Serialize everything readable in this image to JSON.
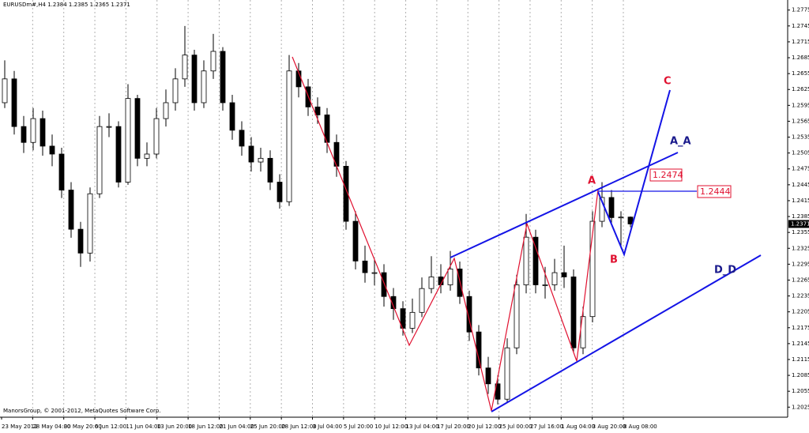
{
  "chart_data": {
    "type": "candlestick",
    "header": "EURUSDm#,H4  1.2384 1.2385 1.2365 1.2371",
    "copyright": "ManorsGroup, © 2001-2012, MetaQuotes Software Corp.",
    "x_labels": [
      "23 May 2012",
      "28 May 04:00",
      "30 May 20:00",
      "6 Jun 12:00",
      "11 Jun 04:00",
      "13 Jun 20:00",
      "18 Jun 12:00",
      "21 Jun 04:00",
      "25 Jun 20:00",
      "28 Jun 12:00",
      "3 Jul 04:00",
      "5 Jul 20:00",
      "10 Jul 12:00",
      "13 Jul 04:00",
      "17 Jul 20:00",
      "20 Jul 12:00",
      "25 Jul 00:00",
      "27 Jul 16:00",
      "1 Aug 04:00",
      "3 Aug 20:00",
      "8 Aug 08:00"
    ],
    "open": [
      1.26,
      1.2645,
      1.2555,
      1.2525,
      1.257,
      1.2518,
      1.2503,
      1.2435,
      1.2361,
      1.2316,
      1.2428,
      1.2555,
      1.2555,
      1.245,
      1.2608,
      1.2495,
      1.2503,
      1.257,
      1.26,
      1.2645,
      1.269,
      1.26,
      1.266,
      1.2697,
      1.26,
      1.2548,
      1.2518,
      1.2488,
      1.2495,
      1.245,
      1.2413,
      1.266,
      1.263,
      1.2592,
      1.2577,
      1.2525,
      1.248,
      1.2376,
      1.2301,
      1.2279,
      1.2279,
      1.2234,
      1.2211,
      1.2174,
      1.2204,
      1.2249,
      1.2271,
      1.2256,
      1.2286,
      1.2234,
      1.2167,
      1.2099,
      1.2069,
      1.204,
      1.2137,
      1.2256,
      1.2346,
      1.2256,
      1.2256,
      1.2279,
      1.2271,
      1.2137,
      1.2196,
      1.2376,
      1.2421,
      1.2383,
      1.2384
    ],
    "high": [
      1.268,
      1.266,
      1.2575,
      1.259,
      1.2585,
      1.254,
      1.2515,
      1.245,
      1.2375,
      1.244,
      1.2575,
      1.258,
      1.2565,
      1.2635,
      1.2615,
      1.2525,
      1.259,
      1.2625,
      1.2665,
      1.2745,
      1.27,
      1.268,
      1.273,
      1.2705,
      1.2615,
      1.2565,
      1.2535,
      1.2515,
      1.251,
      1.2465,
      1.269,
      1.2675,
      1.2645,
      1.261,
      1.259,
      1.254,
      1.249,
      1.2395,
      1.233,
      1.2305,
      1.2295,
      1.225,
      1.2225,
      1.223,
      1.227,
      1.231,
      1.2295,
      1.232,
      1.23,
      1.2245,
      1.218,
      1.212,
      1.2085,
      1.2155,
      1.2275,
      1.239,
      1.236,
      1.229,
      1.2305,
      1.233,
      1.2285,
      1.2215,
      1.2395,
      1.245,
      1.2435,
      1.2395,
      1.2385
    ],
    "low": [
      1.259,
      1.254,
      1.2505,
      1.251,
      1.25,
      1.248,
      1.242,
      1.2345,
      1.229,
      1.23,
      1.242,
      1.2535,
      1.244,
      1.2445,
      1.248,
      1.248,
      1.2495,
      1.2555,
      1.2585,
      1.263,
      1.2585,
      1.259,
      1.2645,
      1.2585,
      1.253,
      1.25,
      1.247,
      1.247,
      1.2435,
      1.24,
      1.2405,
      1.261,
      1.2575,
      1.256,
      1.2505,
      1.246,
      1.236,
      1.2285,
      1.226,
      1.2255,
      1.2215,
      1.219,
      1.216,
      1.2165,
      1.2195,
      1.224,
      1.224,
      1.2245,
      1.222,
      1.215,
      1.2085,
      1.205,
      1.203,
      1.2035,
      1.2125,
      1.224,
      1.224,
      1.223,
      1.2245,
      1.225,
      1.213,
      1.2125,
      1.2185,
      1.2365,
      1.237,
      1.2325,
      1.2365
    ],
    "close": [
      1.2645,
      1.2555,
      1.2525,
      1.257,
      1.2518,
      1.2503,
      1.2435,
      1.2361,
      1.2316,
      1.2428,
      1.2555,
      1.2555,
      1.245,
      1.2608,
      1.2495,
      1.2503,
      1.257,
      1.26,
      1.2645,
      1.269,
      1.26,
      1.266,
      1.2697,
      1.26,
      1.2548,
      1.2518,
      1.2488,
      1.2495,
      1.245,
      1.2413,
      1.266,
      1.263,
      1.2592,
      1.2577,
      1.2525,
      1.248,
      1.2376,
      1.2301,
      1.2279,
      1.2279,
      1.2234,
      1.2211,
      1.2174,
      1.2204,
      1.2249,
      1.2271,
      1.2256,
      1.2286,
      1.2234,
      1.2167,
      1.2099,
      1.2069,
      1.204,
      1.2137,
      1.2256,
      1.2346,
      1.2256,
      1.2256,
      1.2279,
      1.2271,
      1.2137,
      1.2196,
      1.2376,
      1.2421,
      1.2383,
      1.2384,
      1.2371
    ],
    "ylim": [
      1.2006,
      1.2794
    ],
    "yticks": [
      1.2775,
      1.2745,
      1.2715,
      1.2685,
      1.2655,
      1.2625,
      1.2595,
      1.2565,
      1.2535,
      1.2505,
      1.2475,
      1.2445,
      1.2415,
      1.2385,
      1.2355,
      1.2325,
      1.2295,
      1.2265,
      1.2235,
      1.2205,
      1.2175,
      1.2145,
      1.2115,
      1.2085,
      1.2055,
      1.2025
    ],
    "last_price": 1.2371,
    "grid": true,
    "annotations": [
      "A",
      "B",
      "C",
      "A_A",
      "D_D",
      "1.2474",
      "1.2444"
    ]
  }
}
